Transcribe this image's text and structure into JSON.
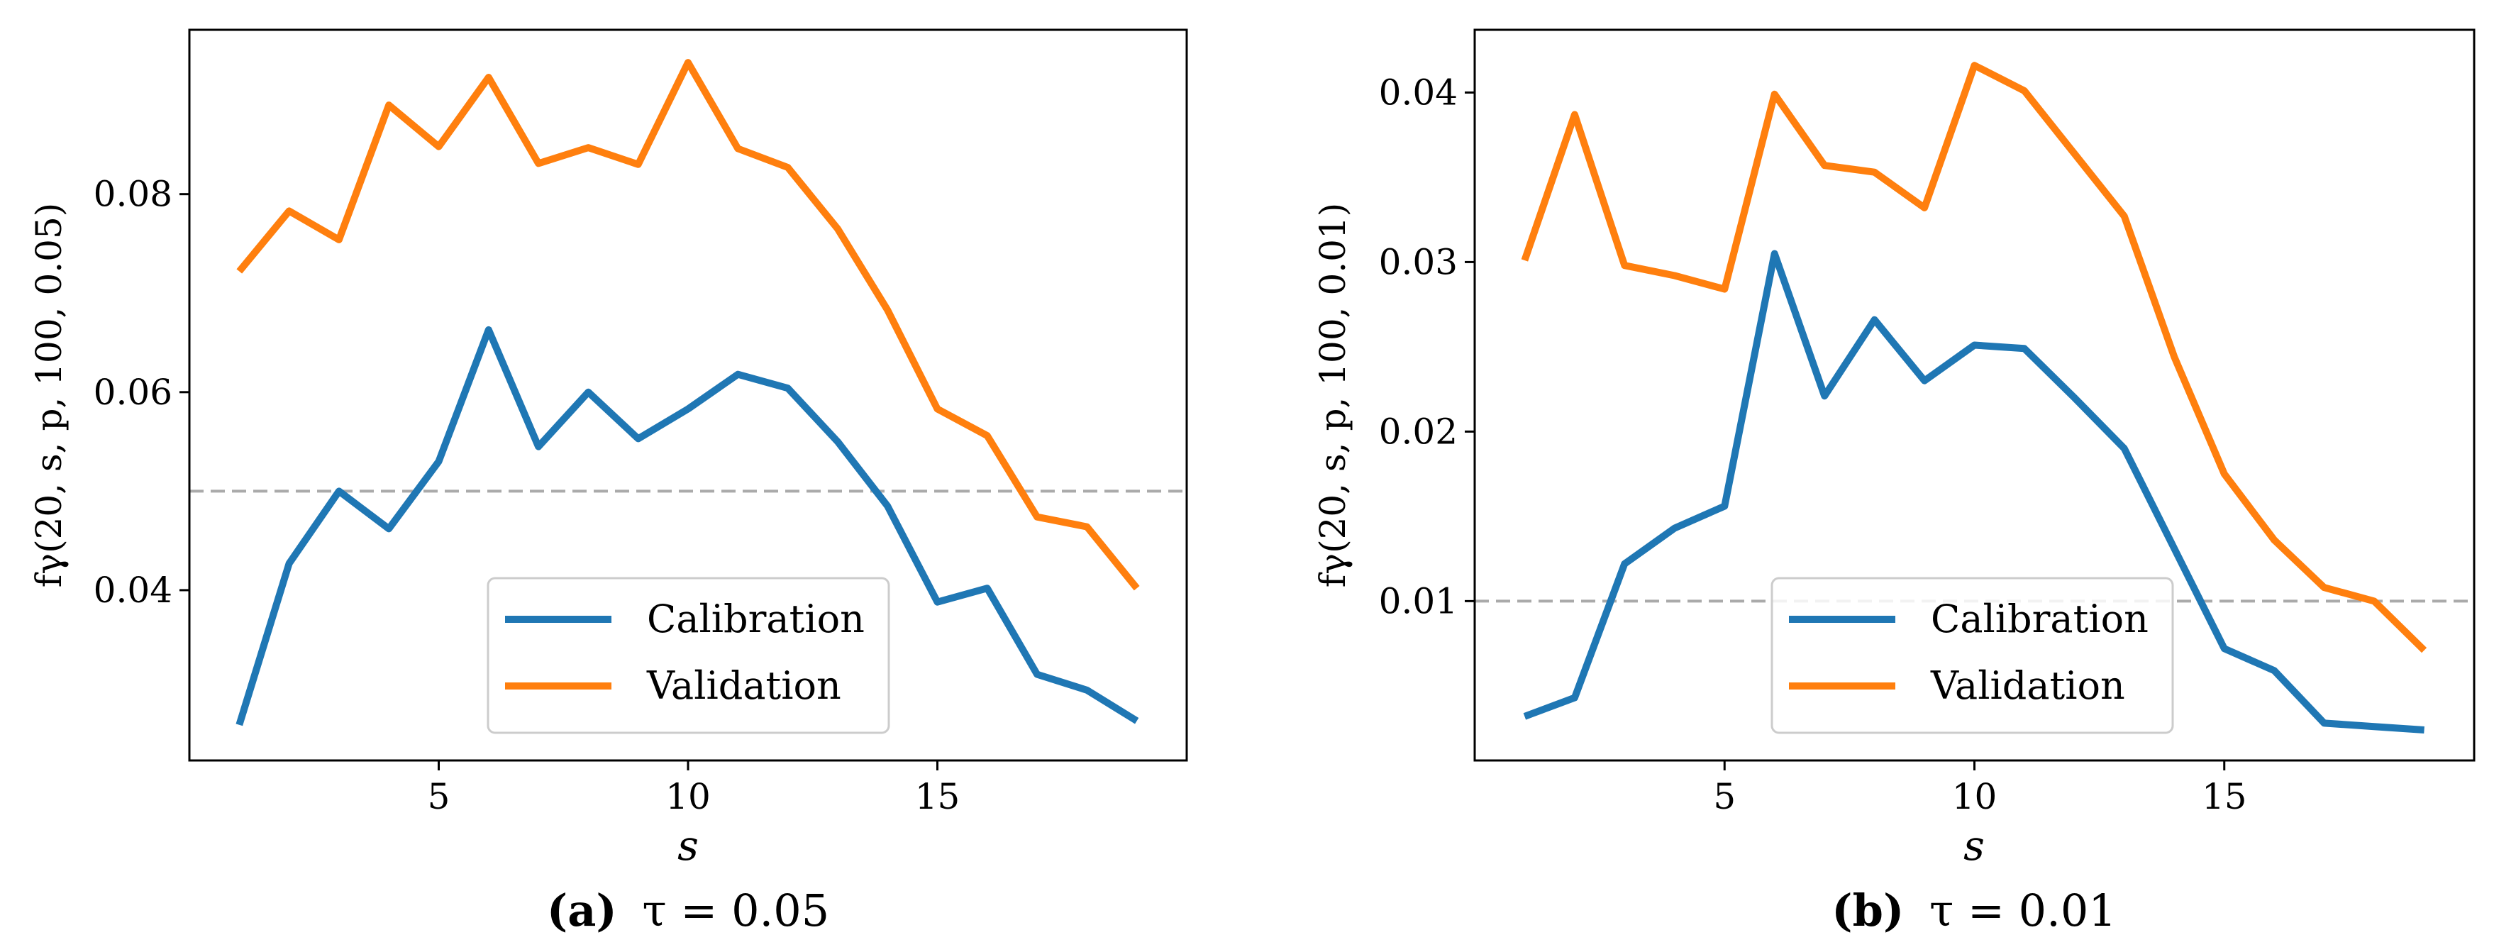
{
  "chart_data": [
    {
      "type": "line",
      "x": [
        1,
        2,
        3,
        4,
        5,
        6,
        7,
        8,
        9,
        10,
        11,
        12,
        13,
        14,
        15,
        16,
        17,
        18,
        19
      ],
      "series": [
        {
          "name": "Calibration",
          "color": "#1f77b4",
          "values": [
            0.0264,
            0.0427,
            0.05,
            0.0462,
            0.053,
            0.0663,
            0.0545,
            0.06,
            0.0553,
            0.0583,
            0.0618,
            0.0604,
            0.055,
            0.0485,
            0.0388,
            0.0402,
            0.0315,
            0.0299,
            0.0268
          ]
        },
        {
          "name": "Validation",
          "color": "#ff7f0e",
          "values": [
            0.0722,
            0.0783,
            0.0754,
            0.089,
            0.0848,
            0.0918,
            0.0831,
            0.0847,
            0.083,
            0.0933,
            0.0846,
            0.0827,
            0.0765,
            0.0683,
            0.0583,
            0.0556,
            0.0474,
            0.0464,
            0.0402
          ]
        }
      ],
      "hline": {
        "value": 0.05,
        "color": "#aaaaaa",
        "style": "dashed"
      },
      "xlabel": "s",
      "ylabel": "fγ(20, s, p, 100, 0.05)",
      "xticks": [
        5,
        10,
        15
      ],
      "yticks": [
        0.04,
        0.06,
        0.08
      ],
      "ytick_labels": [
        "0.04",
        "0.06",
        "0.08"
      ],
      "xlim": [
        0.0,
        20.0
      ],
      "ylim": [
        0.0228,
        0.0966
      ],
      "legend_placement": "lower-right",
      "caption_letter": "(a)",
      "caption_text": "τ = 0.05"
    },
    {
      "type": "line",
      "x": [
        1,
        2,
        3,
        4,
        5,
        6,
        7,
        8,
        9,
        10,
        11,
        12,
        13,
        14,
        15,
        16,
        17,
        18,
        19
      ],
      "series": [
        {
          "name": "Calibration",
          "color": "#1f77b4",
          "values": [
            0.0032,
            0.0043,
            0.0122,
            0.0143,
            0.0156,
            0.0305,
            0.0221,
            0.0266,
            0.023,
            0.0251,
            0.0249,
            0.022,
            0.019,
            0.0131,
            0.0072,
            0.0059,
            0.0028,
            0.0026,
            0.0024
          ]
        },
        {
          "name": "Validation",
          "color": "#ff7f0e",
          "values": [
            0.0301,
            0.0387,
            0.0298,
            0.0292,
            0.0284,
            0.0399,
            0.0357,
            0.0353,
            0.0332,
            0.0416,
            0.0401,
            0.0364,
            0.0327,
            0.0244,
            0.0175,
            0.0136,
            0.0108,
            0.01,
            0.0071
          ]
        }
      ],
      "hline": {
        "value": 0.01,
        "color": "#aaaaaa",
        "style": "dashed"
      },
      "xlabel": "s",
      "ylabel": "fγ(20, s, p, 100, 0.01)",
      "xticks": [
        5,
        10,
        15
      ],
      "yticks": [
        0.01,
        0.02,
        0.03,
        0.04
      ],
      "ytick_labels": [
        "0.01",
        "0.02",
        "0.03",
        "0.04"
      ],
      "xlim": [
        0.0,
        20.0
      ],
      "ylim": [
        0.0006,
        0.0437
      ],
      "legend_placement": "lower-right",
      "caption_letter": "(b)",
      "caption_text": "τ = 0.01"
    }
  ]
}
